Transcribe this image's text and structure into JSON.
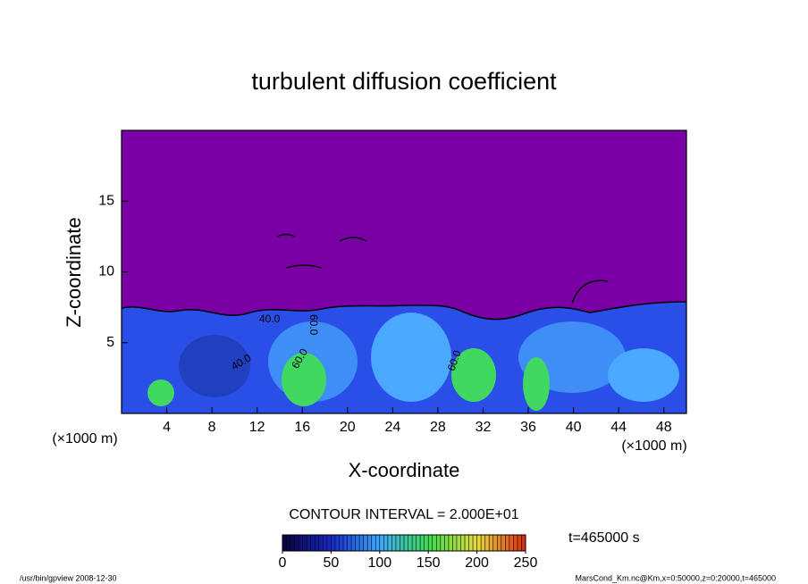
{
  "chart_data": {
    "type": "contour",
    "title": "turbulent diffusion coefficient",
    "xlabel": "X-coordinate",
    "ylabel": "Z-coordinate",
    "x_unit": "(×1000 m)",
    "y_unit": "(×1000 m)",
    "xlim": [
      0,
      50
    ],
    "xticks": [
      4,
      8,
      12,
      16,
      20,
      24,
      28,
      32,
      36,
      40,
      44,
      48
    ],
    "ylim": [
      0,
      20
    ],
    "yticks": [
      5,
      10,
      15
    ],
    "contour_interval": "CONTOUR INTERVAL = 2.000E+01",
    "time_label": "t=465000 s",
    "clim": [
      0,
      250
    ],
    "cticks": [
      0,
      50,
      100,
      150,
      200,
      250
    ],
    "annotations": [
      "40.0",
      "40.0",
      "60.0",
      "60.0",
      "60.0"
    ],
    "footer_left": "/usr/bin/gpview  2008-12-30",
    "footer_right": "MarsCond_Km.nc@Km,x=0:50000,z=0:20000,t=465000"
  }
}
